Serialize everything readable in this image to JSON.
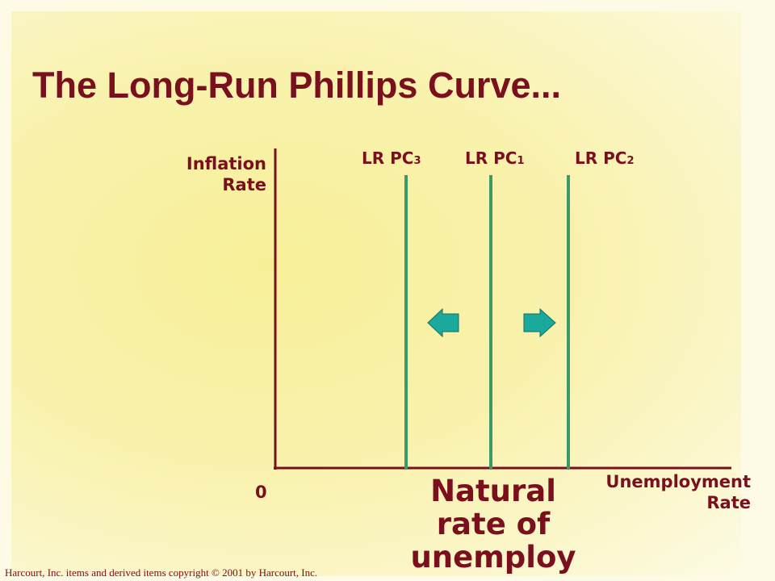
{
  "title": "The Long-Run Phillips Curve...",
  "y_axis_label": [
    "Inflation",
    "Rate"
  ],
  "x_axis_label": [
    "Unemployment",
    "Rate"
  ],
  "origin_label": "0",
  "curves": [
    {
      "label": "LR PC",
      "sub": "3"
    },
    {
      "label": "LR PC",
      "sub": "1"
    },
    {
      "label": "LR PC",
      "sub": "2"
    }
  ],
  "natural_rate_text": [
    "Natural",
    "rate of",
    "unemploy"
  ],
  "copyright": "Harcourt, Inc. items and derived items copyright © 2001 by Harcourt, Inc.",
  "colors": {
    "text": "#7a0f1e",
    "axis": "#7a0f1e",
    "curve": "#3a9a6a",
    "arrow": "#1aa99a"
  },
  "arrows": [
    {
      "direction": "left"
    },
    {
      "direction": "right"
    }
  ]
}
